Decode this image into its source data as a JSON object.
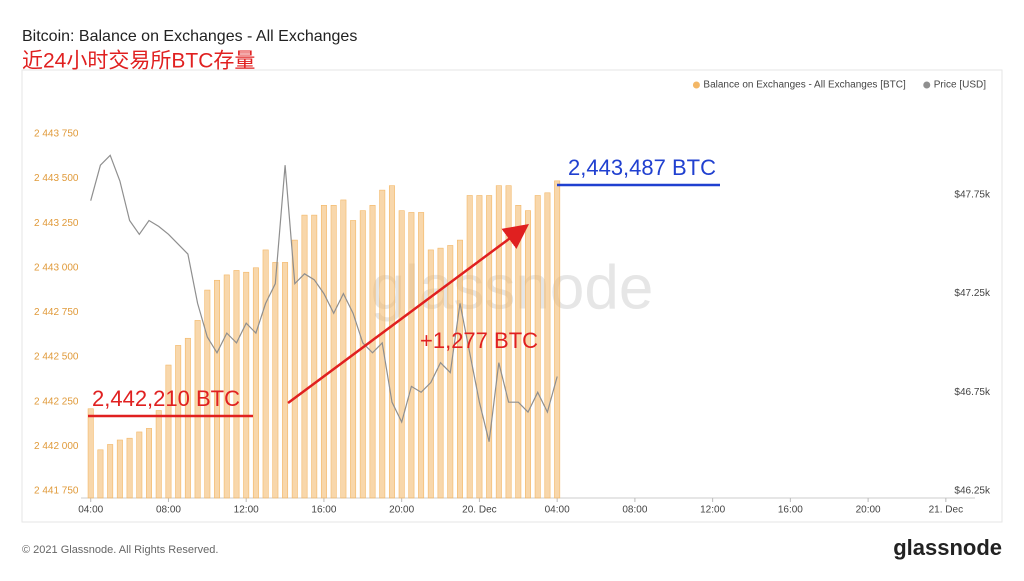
{
  "chart_data": {
    "type": "combo",
    "title": "Bitcoin: Balance on Exchanges - All Exchanges",
    "subtitle": "近24小时交易所BTC存量",
    "watermark": "glassnode",
    "annotations": [
      "2,442,210 BTC",
      "+1,277 BTC",
      "2,443,487 BTC"
    ],
    "x": [
      4,
      4.5,
      5,
      5.5,
      6,
      6.5,
      7,
      7.5,
      8,
      8.5,
      9,
      9.5,
      10,
      10.5,
      11,
      11.5,
      12,
      12.5,
      13,
      13.5,
      14,
      14.5,
      15,
      15.5,
      16,
      16.5,
      17,
      17.5,
      18,
      18.5,
      19,
      19.5,
      20,
      20.5,
      21,
      21.5,
      22,
      22.5,
      23,
      23.5,
      24,
      24.5,
      25,
      25.5,
      26,
      26.5,
      27,
      27.5,
      28
    ],
    "series": [
      {
        "name": "Balance on Exchanges - All Exchanges [BTC]",
        "type": "bar",
        "axis": "y",
        "color": "#f3b766",
        "values": [
          2442210,
          2441980,
          2442010,
          2442035,
          2442045,
          2442080,
          2442100,
          2442200,
          2442455,
          2442565,
          2442605,
          2442705,
          2442875,
          2442930,
          2442960,
          2442985,
          2442975,
          2443000,
          2443100,
          2443030,
          2443030,
          2443155,
          2443295,
          2443295,
          2443350,
          2443350,
          2443380,
          2443265,
          2443320,
          2443350,
          2443435,
          2443460,
          2443320,
          2443310,
          2443310,
          2443100,
          2443110,
          2443125,
          2443155,
          2443405,
          2443405,
          2443405,
          2443460,
          2443460,
          2443350,
          2443320,
          2443405,
          2443420,
          2443487
        ]
      },
      {
        "name": "Price [USD]",
        "type": "line",
        "axis": "y2",
        "color": "#8f8f8f",
        "values": [
          47720,
          47900,
          47950,
          47820,
          47620,
          47550,
          47620,
          47590,
          47550,
          47500,
          47450,
          47200,
          47030,
          46950,
          47050,
          47000,
          47100,
          47050,
          47200,
          47300,
          47900,
          47300,
          47350,
          47320,
          47250,
          47150,
          47250,
          47150,
          47000,
          46950,
          47000,
          46700,
          46600,
          46780,
          46750,
          46800,
          46900,
          46850,
          47200,
          46950,
          46700,
          46500,
          46900,
          46700,
          46700,
          46650,
          46750,
          46650,
          46830
        ]
      }
    ],
    "xlim": [
      3.5,
      49.5
    ],
    "xticks": [
      {
        "value": 4,
        "label": "04:00"
      },
      {
        "value": 8,
        "label": "08:00"
      },
      {
        "value": 12,
        "label": "12:00"
      },
      {
        "value": 16,
        "label": "16:00"
      },
      {
        "value": 20,
        "label": "20:00"
      },
      {
        "value": 24,
        "label": "20. Dec"
      },
      {
        "value": 28,
        "label": "04:00"
      },
      {
        "value": 32,
        "label": "08:00"
      },
      {
        "value": 36,
        "label": "12:00"
      },
      {
        "value": 40,
        "label": "16:00"
      },
      {
        "value": 44,
        "label": "20:00"
      },
      {
        "value": 48,
        "label": "21. Dec"
      }
    ],
    "ylim": [
      2441710,
      2443940
    ],
    "yticks": [
      {
        "value": 2441750,
        "label": "2 441 750"
      },
      {
        "value": 2442000,
        "label": "2 442 000"
      },
      {
        "value": 2442250,
        "label": "2 442 250"
      },
      {
        "value": 2442500,
        "label": "2 442 500"
      },
      {
        "value": 2442750,
        "label": "2 442 750"
      },
      {
        "value": 2443000,
        "label": "2 443 000"
      },
      {
        "value": 2443250,
        "label": "2 443 250"
      },
      {
        "value": 2443500,
        "label": "2 443 500"
      },
      {
        "value": 2443750,
        "label": "2 443 750"
      }
    ],
    "y2lim": [
      46215,
      48230
    ],
    "y2ticks": [
      {
        "value": 46250,
        "label": "$46.25k"
      },
      {
        "value": 46750,
        "label": "$46.75k"
      },
      {
        "value": 47250,
        "label": "$47.25k"
      },
      {
        "value": 47750,
        "label": "$47.75k"
      }
    ],
    "grid": false,
    "legend": "top-right"
  },
  "footer": {
    "copyright": "© 2021 Glassnode. All Rights Reserved.",
    "logo": "glassnode"
  }
}
